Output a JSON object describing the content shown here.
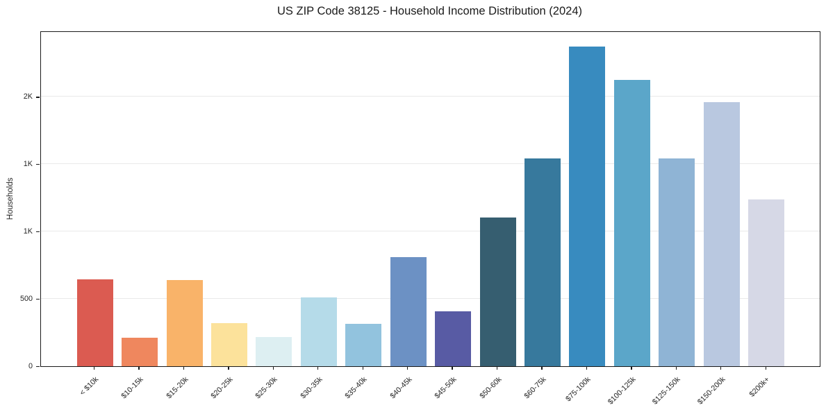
{
  "chart_data": {
    "type": "bar",
    "title": "US ZIP Code 38125 - Household Income Distribution (2024)",
    "xlabel": "",
    "ylabel": "Households",
    "categories": [
      "< $10k",
      "$10-15k",
      "$15-20k",
      "$20-25k",
      "$25-30k",
      "$30-35k",
      "$35-40k",
      "$40-45k",
      "$45-50k",
      "$50-60k",
      "$60-75k",
      "$75-100k",
      "$100-125k",
      "$125-150k",
      "$150-200k",
      "$200k+"
    ],
    "values": [
      645,
      210,
      635,
      320,
      215,
      510,
      310,
      810,
      405,
      1100,
      1540,
      2370,
      2125,
      1540,
      1960,
      1235
    ],
    "bar_colors": [
      "#db5b51",
      "#ef875e",
      "#f9b369",
      "#fce29b",
      "#ddeff2",
      "#b5dbe9",
      "#92c3de",
      "#6c91c4",
      "#585ba4",
      "#365e70",
      "#37799d",
      "#388bbf",
      "#5ba6c9",
      "#8fb4d5",
      "#b9c8e0",
      "#d6d8e6"
    ],
    "ylim": [
      0,
      2490
    ],
    "yticks": [
      {
        "value": 0,
        "label": "0"
      },
      {
        "value": 500,
        "label": "500"
      },
      {
        "value": 1000,
        "label": "1K"
      },
      {
        "value": 1500,
        "label": "1K"
      },
      {
        "value": 2000,
        "label": "2K"
      }
    ],
    "grid": "horizontal",
    "legend_position": "none",
    "colors": {
      "axis": "#1a1a1a",
      "grid": "#e9e9e9",
      "text": "#262626",
      "background": "#ffffff"
    }
  }
}
